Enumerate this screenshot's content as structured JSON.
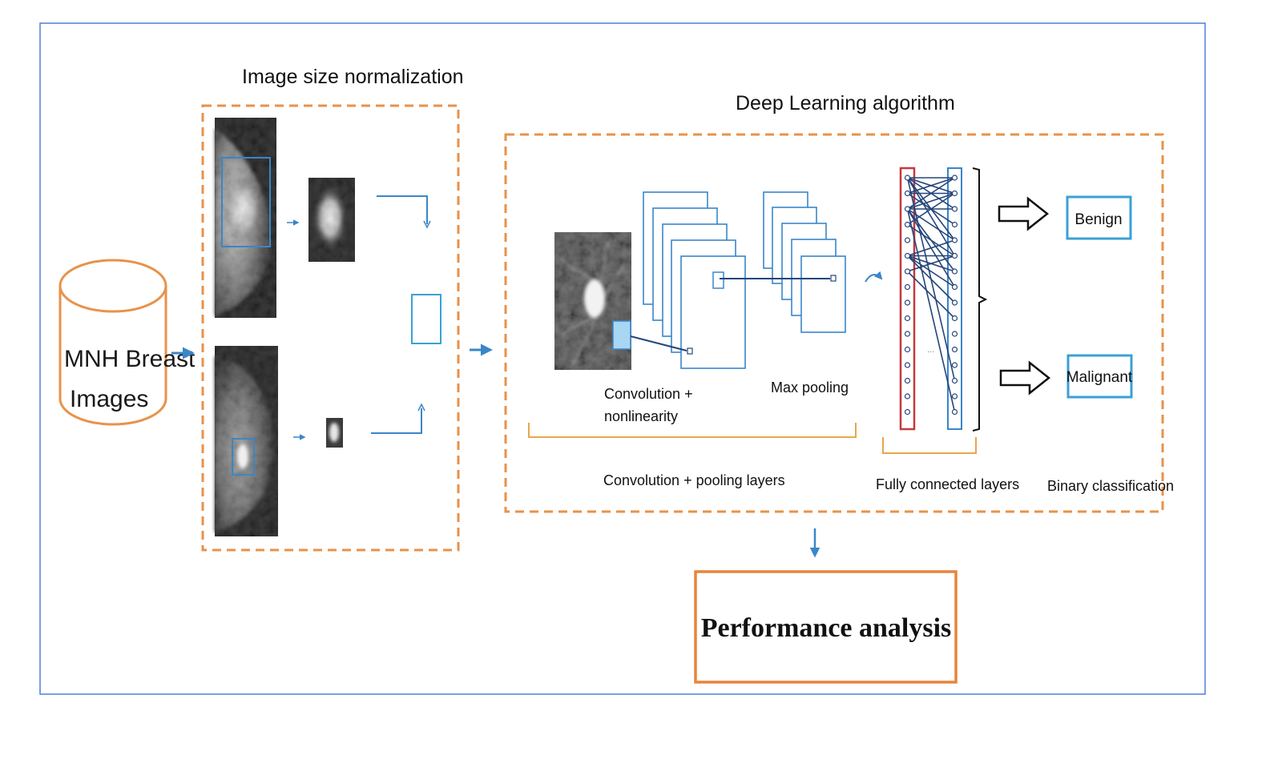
{
  "diagram": {
    "source": {
      "line1": "MNH Breast",
      "line2": "Images"
    },
    "normalization": {
      "title": "Image size normalization"
    },
    "deep_learning": {
      "title": "Deep Learning algorithm",
      "conv_label_line1": "Convolution +",
      "conv_label_line2": "nonlinearity",
      "max_pooling_label": "Max pooling",
      "conv_pool_layers_label": "Convolution + pooling layers",
      "fully_connected_label": "Fully connected layers",
      "binary_classification_label": "Binary classification",
      "ellipsis": "..."
    },
    "classes": {
      "benign": "Benign",
      "malignant": "Malignant"
    },
    "performance": {
      "label": "Performance analysis"
    },
    "colors": {
      "frame": "#4f7fdd",
      "orange": "#e8924a",
      "blue": "#3a86c8",
      "navy": "#24457a",
      "red": "#c8383a",
      "cyan_box": "#3ba0d6",
      "perf_border": "#e9843a",
      "bracket": "#e8a64c"
    }
  }
}
